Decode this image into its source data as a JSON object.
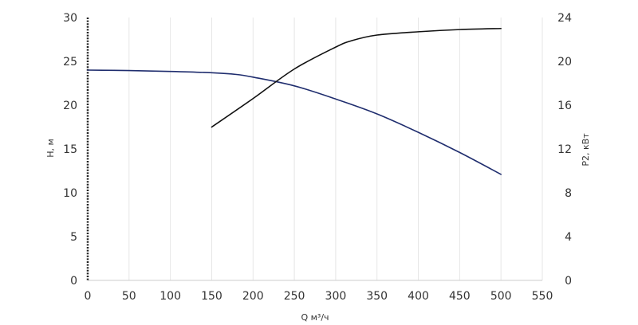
{
  "chart_data": {
    "type": "line",
    "title": "",
    "xlabel": "Q м³/ч",
    "ylabel_left": "H, м",
    "ylabel_right": "P2, кВт",
    "xlim": [
      0,
      550
    ],
    "ylim_left": [
      0,
      30
    ],
    "ylim_right": [
      0,
      24
    ],
    "x_ticks": [
      0,
      50,
      100,
      150,
      200,
      250,
      300,
      350,
      400,
      450,
      500,
      550
    ],
    "y_left_ticks": [
      0,
      5,
      10,
      15,
      20,
      25,
      30
    ],
    "y_right_ticks": [
      0,
      4,
      8,
      12,
      16,
      20,
      24
    ],
    "grid": "vertical",
    "legend": "none",
    "series": [
      {
        "axis": "left",
        "color": "#1f2d6e",
        "points": [
          [
            0,
            24.0
          ],
          [
            50,
            23.95
          ],
          [
            100,
            23.85
          ],
          [
            150,
            23.7
          ],
          [
            180,
            23.5
          ],
          [
            200,
            23.2
          ],
          [
            250,
            22.2
          ],
          [
            300,
            20.7
          ],
          [
            350,
            19.0
          ],
          [
            400,
            16.9
          ],
          [
            450,
            14.6
          ],
          [
            500,
            12.1
          ]
        ]
      },
      {
        "axis": "right",
        "color": "#111111",
        "points": [
          [
            150,
            14.0
          ],
          [
            200,
            16.6
          ],
          [
            250,
            19.3
          ],
          [
            300,
            21.3
          ],
          [
            320,
            21.9
          ],
          [
            350,
            22.4
          ],
          [
            400,
            22.7
          ],
          [
            450,
            22.9
          ],
          [
            500,
            23.0
          ]
        ]
      }
    ]
  }
}
